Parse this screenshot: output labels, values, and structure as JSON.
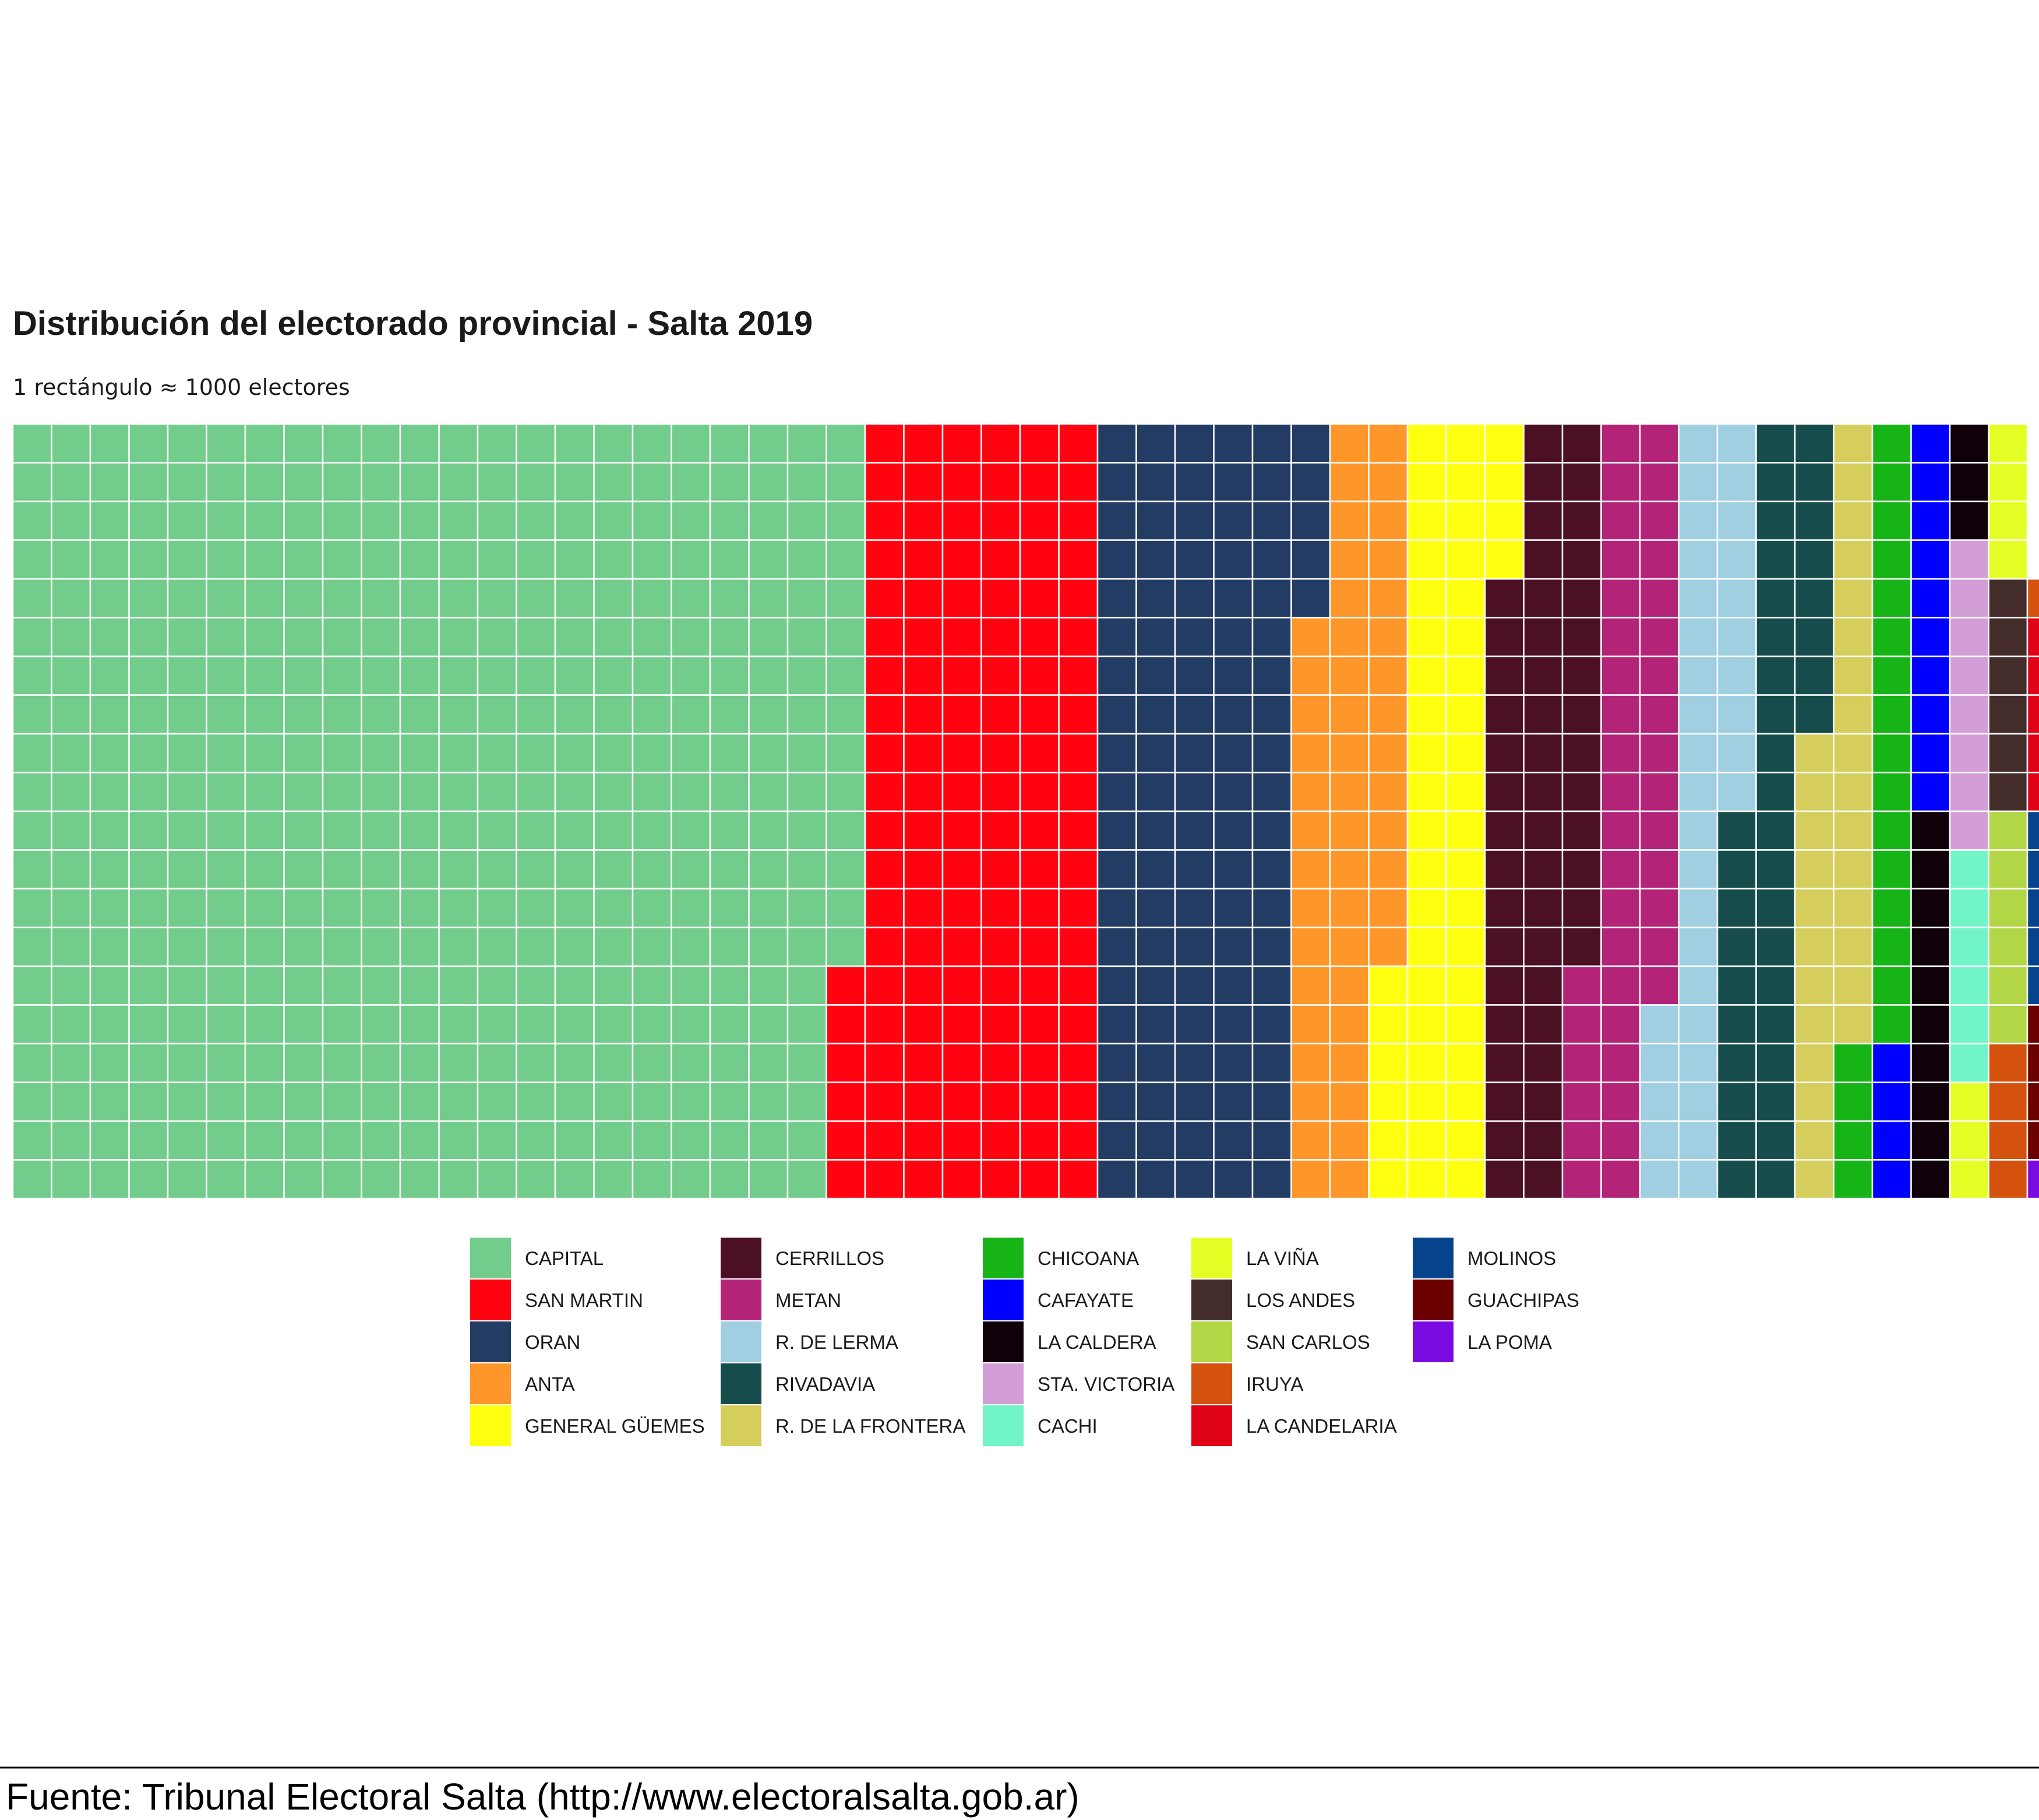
{
  "chart_data": {
    "type": "waffle",
    "title": "Distribución del electorado provincial - Salta 2019",
    "subtitle": "1 rectángulo ≈ 1000 electores",
    "caption": "Fuente: Tribunal Electoral Salta (http://www.electoralsalta.gob.ar)",
    "rows": 20,
    "unit": "1000 electores",
    "legend_columns": 5,
    "legend_rows": 5,
    "series": [
      {
        "name": "CAPITAL",
        "value": 434,
        "color": "#72CC8B"
      },
      {
        "name": "SAN MARTIN",
        "value": 126,
        "color": "#FF0311"
      },
      {
        "name": "ORAN",
        "value": 105,
        "color": "#233C63"
      },
      {
        "name": "ANTA",
        "value": 49,
        "color": "#FF9629"
      },
      {
        "name": "GENERAL GÜEMES",
        "value": 50,
        "color": "#FFFF10"
      },
      {
        "name": "CERRILLOS",
        "value": 50,
        "color": "#4B1024"
      },
      {
        "name": "METAN",
        "value": 41,
        "color": "#B32378"
      },
      {
        "name": "R. DE LERMA",
        "value": 35,
        "color": "#9FCFE0"
      },
      {
        "name": "RIVADAVIA",
        "value": 38,
        "color": "#164D4C"
      },
      {
        "name": "R. DE LA FRONTERA",
        "value": 28,
        "color": "#D5CE5C"
      },
      {
        "name": "CHICOANA",
        "value": 20,
        "color": "#16B416"
      },
      {
        "name": "CAFAYATE",
        "value": 14,
        "color": "#0000FF"
      },
      {
        "name": "LA CALDERA",
        "value": 13,
        "color": "#0F0009"
      },
      {
        "name": "STA. VICTORIA",
        "value": 8,
        "color": "#D39ED7"
      },
      {
        "name": "CACHI",
        "value": 6,
        "color": "#70F4C8"
      },
      {
        "name": "LA VIÑA",
        "value": 7,
        "color": "#E4FF26"
      },
      {
        "name": "LOS ANDES",
        "value": 6,
        "color": "#432C2A"
      },
      {
        "name": "SAN CARLOS",
        "value": 6,
        "color": "#B2D645"
      },
      {
        "name": "IRUYA",
        "value": 5,
        "color": "#D5520E"
      },
      {
        "name": "LA CANDELARIA",
        "value": 5,
        "color": "#E00317"
      },
      {
        "name": "MOLINOS",
        "value": 5,
        "color": "#07428D"
      },
      {
        "name": "GUACHIPAS",
        "value": 4,
        "color": "#6A0000"
      },
      {
        "name": "LA POMA",
        "value": 1,
        "color": "#7A0BE0"
      }
    ]
  }
}
